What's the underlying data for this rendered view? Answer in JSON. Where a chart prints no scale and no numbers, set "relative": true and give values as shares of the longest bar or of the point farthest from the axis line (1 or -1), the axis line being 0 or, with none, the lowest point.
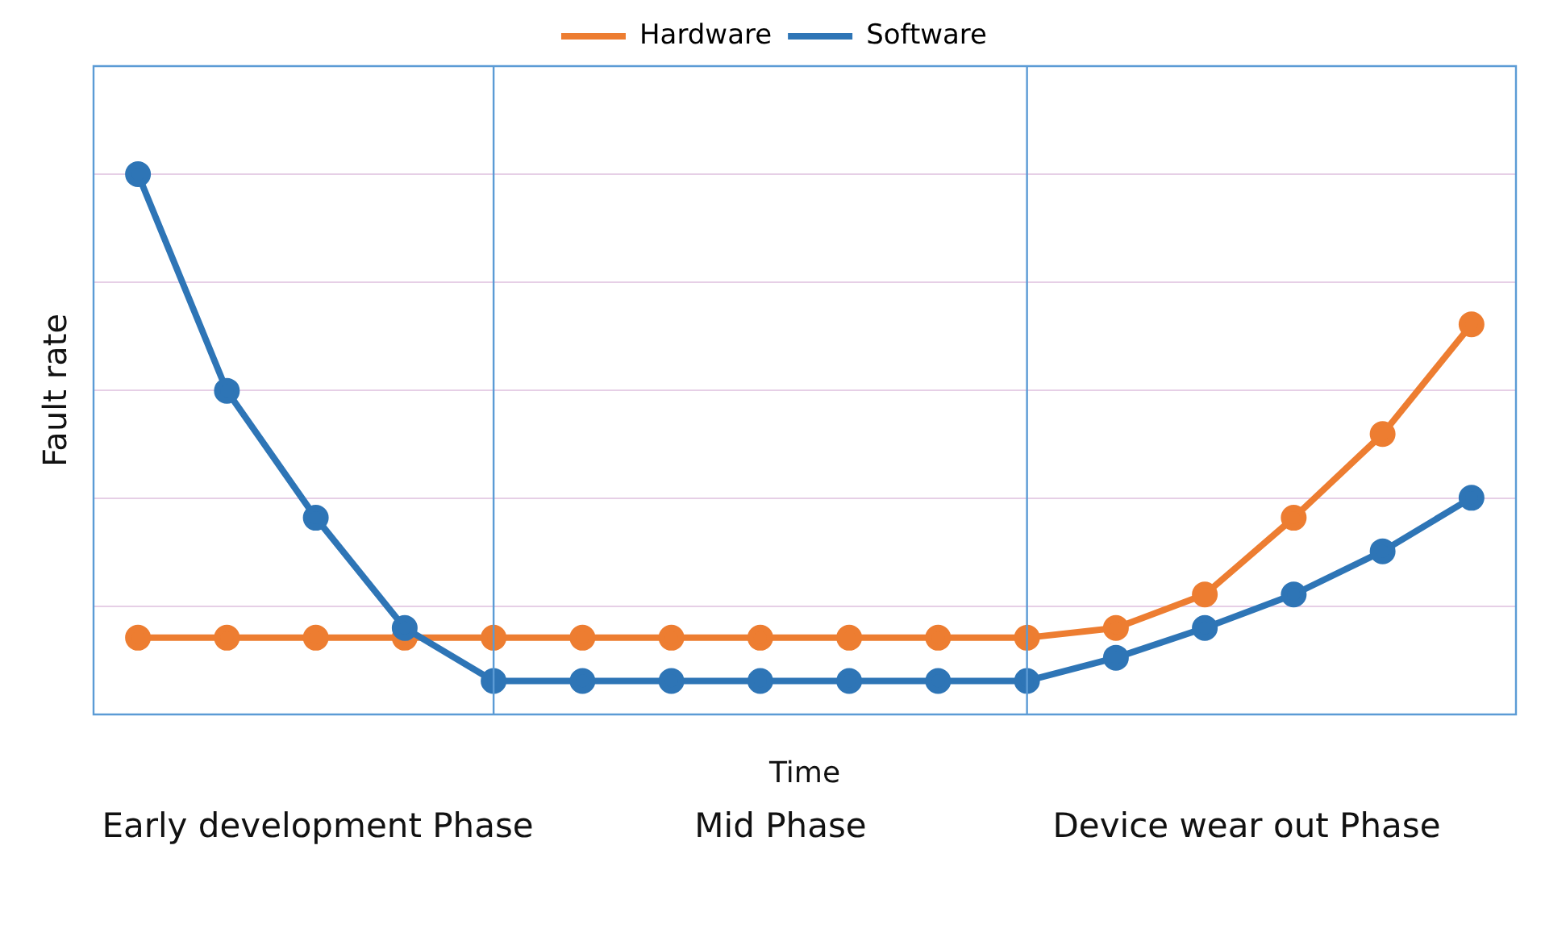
{
  "chart_data": {
    "type": "line",
    "relative": true,
    "xlabel": "Time",
    "ylabel": "Fault rate",
    "categories": [
      null,
      null,
      null,
      null,
      null,
      null,
      null,
      null,
      null,
      null,
      null,
      null,
      null,
      null,
      null,
      null
    ],
    "series": [
      {
        "name": "Hardware",
        "color": "#ed7d31",
        "values": [
          0.142,
          0.142,
          0.142,
          0.142,
          0.142,
          0.142,
          0.142,
          0.142,
          0.142,
          0.142,
          0.142,
          0.16,
          0.222,
          0.364,
          0.519,
          0.722
        ]
      },
      {
        "name": "Software",
        "color": "#2e75b6",
        "values": [
          1,
          0.599,
          0.364,
          0.16,
          0.062,
          0.062,
          0.062,
          0.062,
          0.062,
          0.062,
          0.062,
          0.105,
          0.16,
          0.222,
          0.302,
          0.401
        ]
      }
    ],
    "annotations": [
      "Early development Phase",
      "Mid Phase",
      "Device wear out Phase"
    ],
    "grid": "y",
    "legend": "top",
    "marker": "circle",
    "line_style": "solid"
  }
}
